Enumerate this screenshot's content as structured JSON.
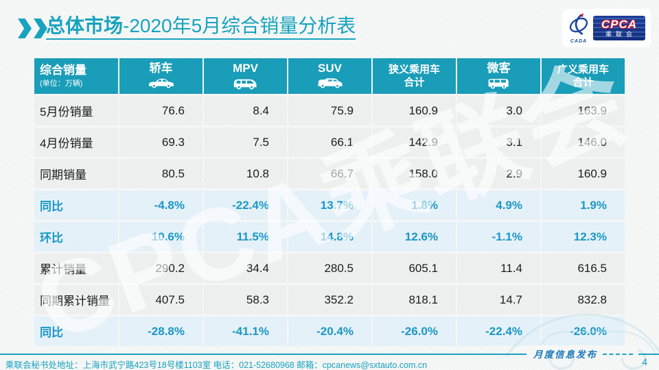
{
  "title": {
    "highlight": "总体市场",
    "rest": "-2020年5月综合销量分析表"
  },
  "logo": {
    "cpca": "CPCA",
    "name_cn": "乘联会",
    "cada": "CADA"
  },
  "table": {
    "corner": {
      "title": "综合销量",
      "unit": "(单位：万辆)"
    },
    "columns": [
      {
        "label": "轿车",
        "icon": "sedan-icon"
      },
      {
        "label": "MPV",
        "icon": "mpv-icon"
      },
      {
        "label": "SUV",
        "icon": "suv-icon"
      },
      {
        "label": "狭义乘用车",
        "label2": "合计"
      },
      {
        "label": "微客",
        "icon": "microvan-icon"
      },
      {
        "label": "广义乘用车",
        "label2": "合计"
      }
    ],
    "rows": [
      {
        "label": "5月份销量",
        "type": "normal",
        "values": [
          "76.6",
          "8.4",
          "75.9",
          "160.9",
          "3.0",
          "163.9"
        ]
      },
      {
        "label": "4月份销量",
        "type": "normal",
        "values": [
          "69.3",
          "7.5",
          "66.1",
          "142.9",
          "3.1",
          "146.0"
        ]
      },
      {
        "label": "同期销量",
        "type": "normal",
        "values": [
          "80.5",
          "10.8",
          "66.7",
          "158.0",
          "2.9",
          "160.9"
        ]
      },
      {
        "label": "同比",
        "type": "highlight",
        "values": [
          "-4.8%",
          "-22.4%",
          "13.7%",
          "1.8%",
          "4.9%",
          "1.9%"
        ]
      },
      {
        "label": "环比",
        "type": "highlight",
        "values": [
          "10.6%",
          "11.5%",
          "14.8%",
          "12.6%",
          "-1.1%",
          "12.3%"
        ]
      },
      {
        "label": "累计销量",
        "type": "normal",
        "values": [
          "290.2",
          "34.4",
          "280.5",
          "605.1",
          "11.4",
          "616.5"
        ]
      },
      {
        "label": "同期累计销量",
        "type": "normal",
        "values": [
          "407.5",
          "58.3",
          "352.2",
          "818.1",
          "14.7",
          "832.8"
        ]
      },
      {
        "label": "同比",
        "type": "highlight",
        "values": [
          "-28.8%",
          "-41.1%",
          "-20.4%",
          "-26.0%",
          "-22.4%",
          "-26.0%"
        ]
      }
    ]
  },
  "watermark": "CPCA乘联会",
  "footer": {
    "address": "乘联会秘书处地址：上海市武宁路423号18号楼1103室 电话：021-52680968  邮箱：cpcanews@sxtauto.com.cn",
    "release_label": "月度信息发布",
    "page_number": "4"
  },
  "colors": {
    "accent": "#17a3be",
    "header_bg": "#199db8",
    "highlight_bg": "#e3f0f9",
    "highlight_text": "#1a97c5",
    "footer_blue": "#1b79b8"
  }
}
